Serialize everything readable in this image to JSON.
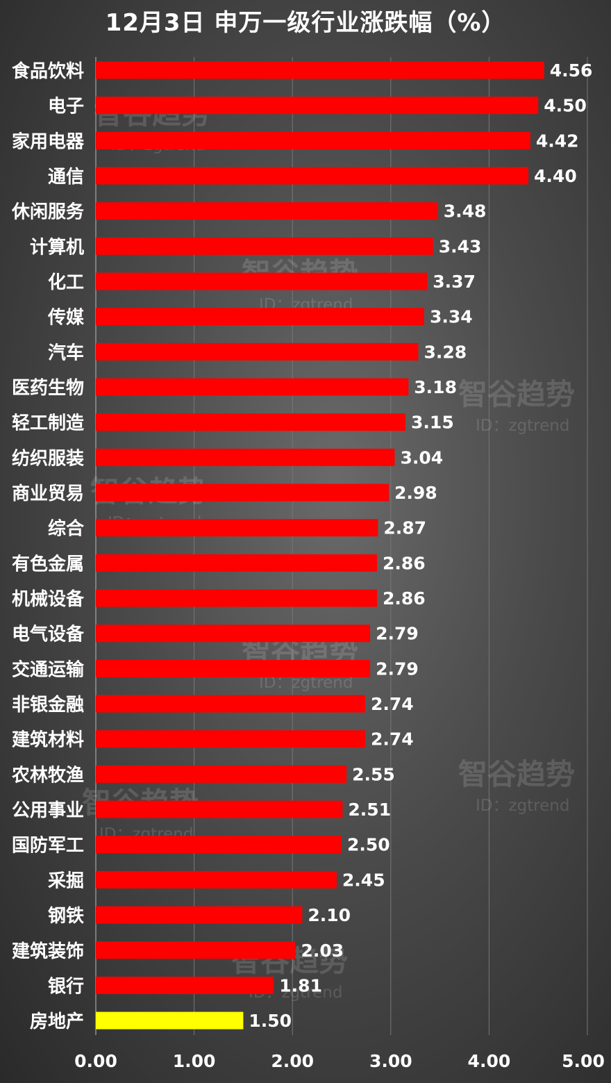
{
  "chart_data": {
    "type": "bar",
    "orientation": "horizontal",
    "title": "12月3日 申万一级行业涨跌幅（%）",
    "categories": [
      "食品饮料",
      "电子",
      "家用电器",
      "通信",
      "休闲服务",
      "计算机",
      "化工",
      "传媒",
      "汽车",
      "医药生物",
      "轻工制造",
      "纺织服装",
      "商业贸易",
      "综合",
      "有色金属",
      "机械设备",
      "电气设备",
      "交通运输",
      "非银金融",
      "建筑材料",
      "农林牧渔",
      "公用事业",
      "国防军工",
      "采掘",
      "钢铁",
      "建筑装饰",
      "银行",
      "房地产"
    ],
    "values": [
      4.56,
      4.5,
      4.42,
      4.4,
      3.48,
      3.43,
      3.37,
      3.34,
      3.28,
      3.18,
      3.15,
      3.04,
      2.98,
      2.87,
      2.86,
      2.86,
      2.79,
      2.79,
      2.74,
      2.74,
      2.55,
      2.51,
      2.5,
      2.45,
      2.1,
      2.03,
      1.81,
      1.5
    ],
    "value_labels": [
      "4.56",
      "4.50",
      "4.42",
      "4.40",
      "3.48",
      "3.43",
      "3.37",
      "3.34",
      "3.28",
      "3.18",
      "3.15",
      "3.04",
      "2.98",
      "2.87",
      "2.86",
      "2.86",
      "2.79",
      "2.79",
      "2.74",
      "2.74",
      "2.55",
      "2.51",
      "2.50",
      "2.45",
      "2.10",
      "2.03",
      "1.81",
      "1.50"
    ],
    "xlim": [
      0,
      5
    ],
    "xticks": [
      0,
      1,
      2,
      3,
      4,
      5
    ],
    "xtick_labels": [
      "0.00",
      "1.00",
      "2.00",
      "3.00",
      "4.00",
      "5.00"
    ],
    "grid": "vertical",
    "bar_color": "#ff0000",
    "highlight_color": "#ffff00",
    "highlight_category": "房地产"
  },
  "watermark": {
    "name": "智谷趋势",
    "id": "ID：zgtrend"
  },
  "colors": {
    "background": "#4a4a4a",
    "text": "#ffffff",
    "grid": "#777777"
  }
}
